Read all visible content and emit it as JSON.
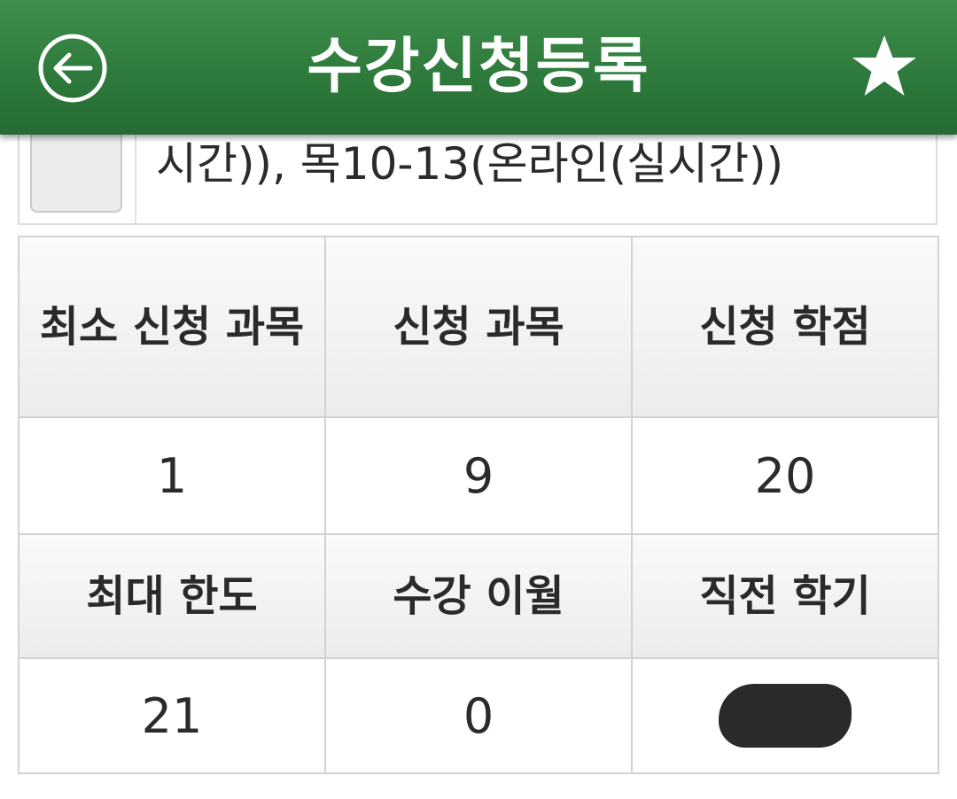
{
  "header": {
    "title": "수강신청등록",
    "back_icon": "back-arrow-circle-icon",
    "favorite_icon": "star-icon",
    "background_color": "#2e7a3c"
  },
  "course_item": {
    "schedule_text": "시간)), 목10-13(온라인(실시간))"
  },
  "summary_table": {
    "headers_row1": [
      "최소 신청 과목",
      "신청 과목",
      "신청 학점"
    ],
    "values_row1": [
      "1",
      "9",
      "20"
    ],
    "headers_row2": [
      "최대 한도",
      "수강 이월",
      "직전 학기"
    ],
    "values_row2": [
      "21",
      "0",
      ""
    ],
    "redacted_cell": "previous-semester-value"
  }
}
